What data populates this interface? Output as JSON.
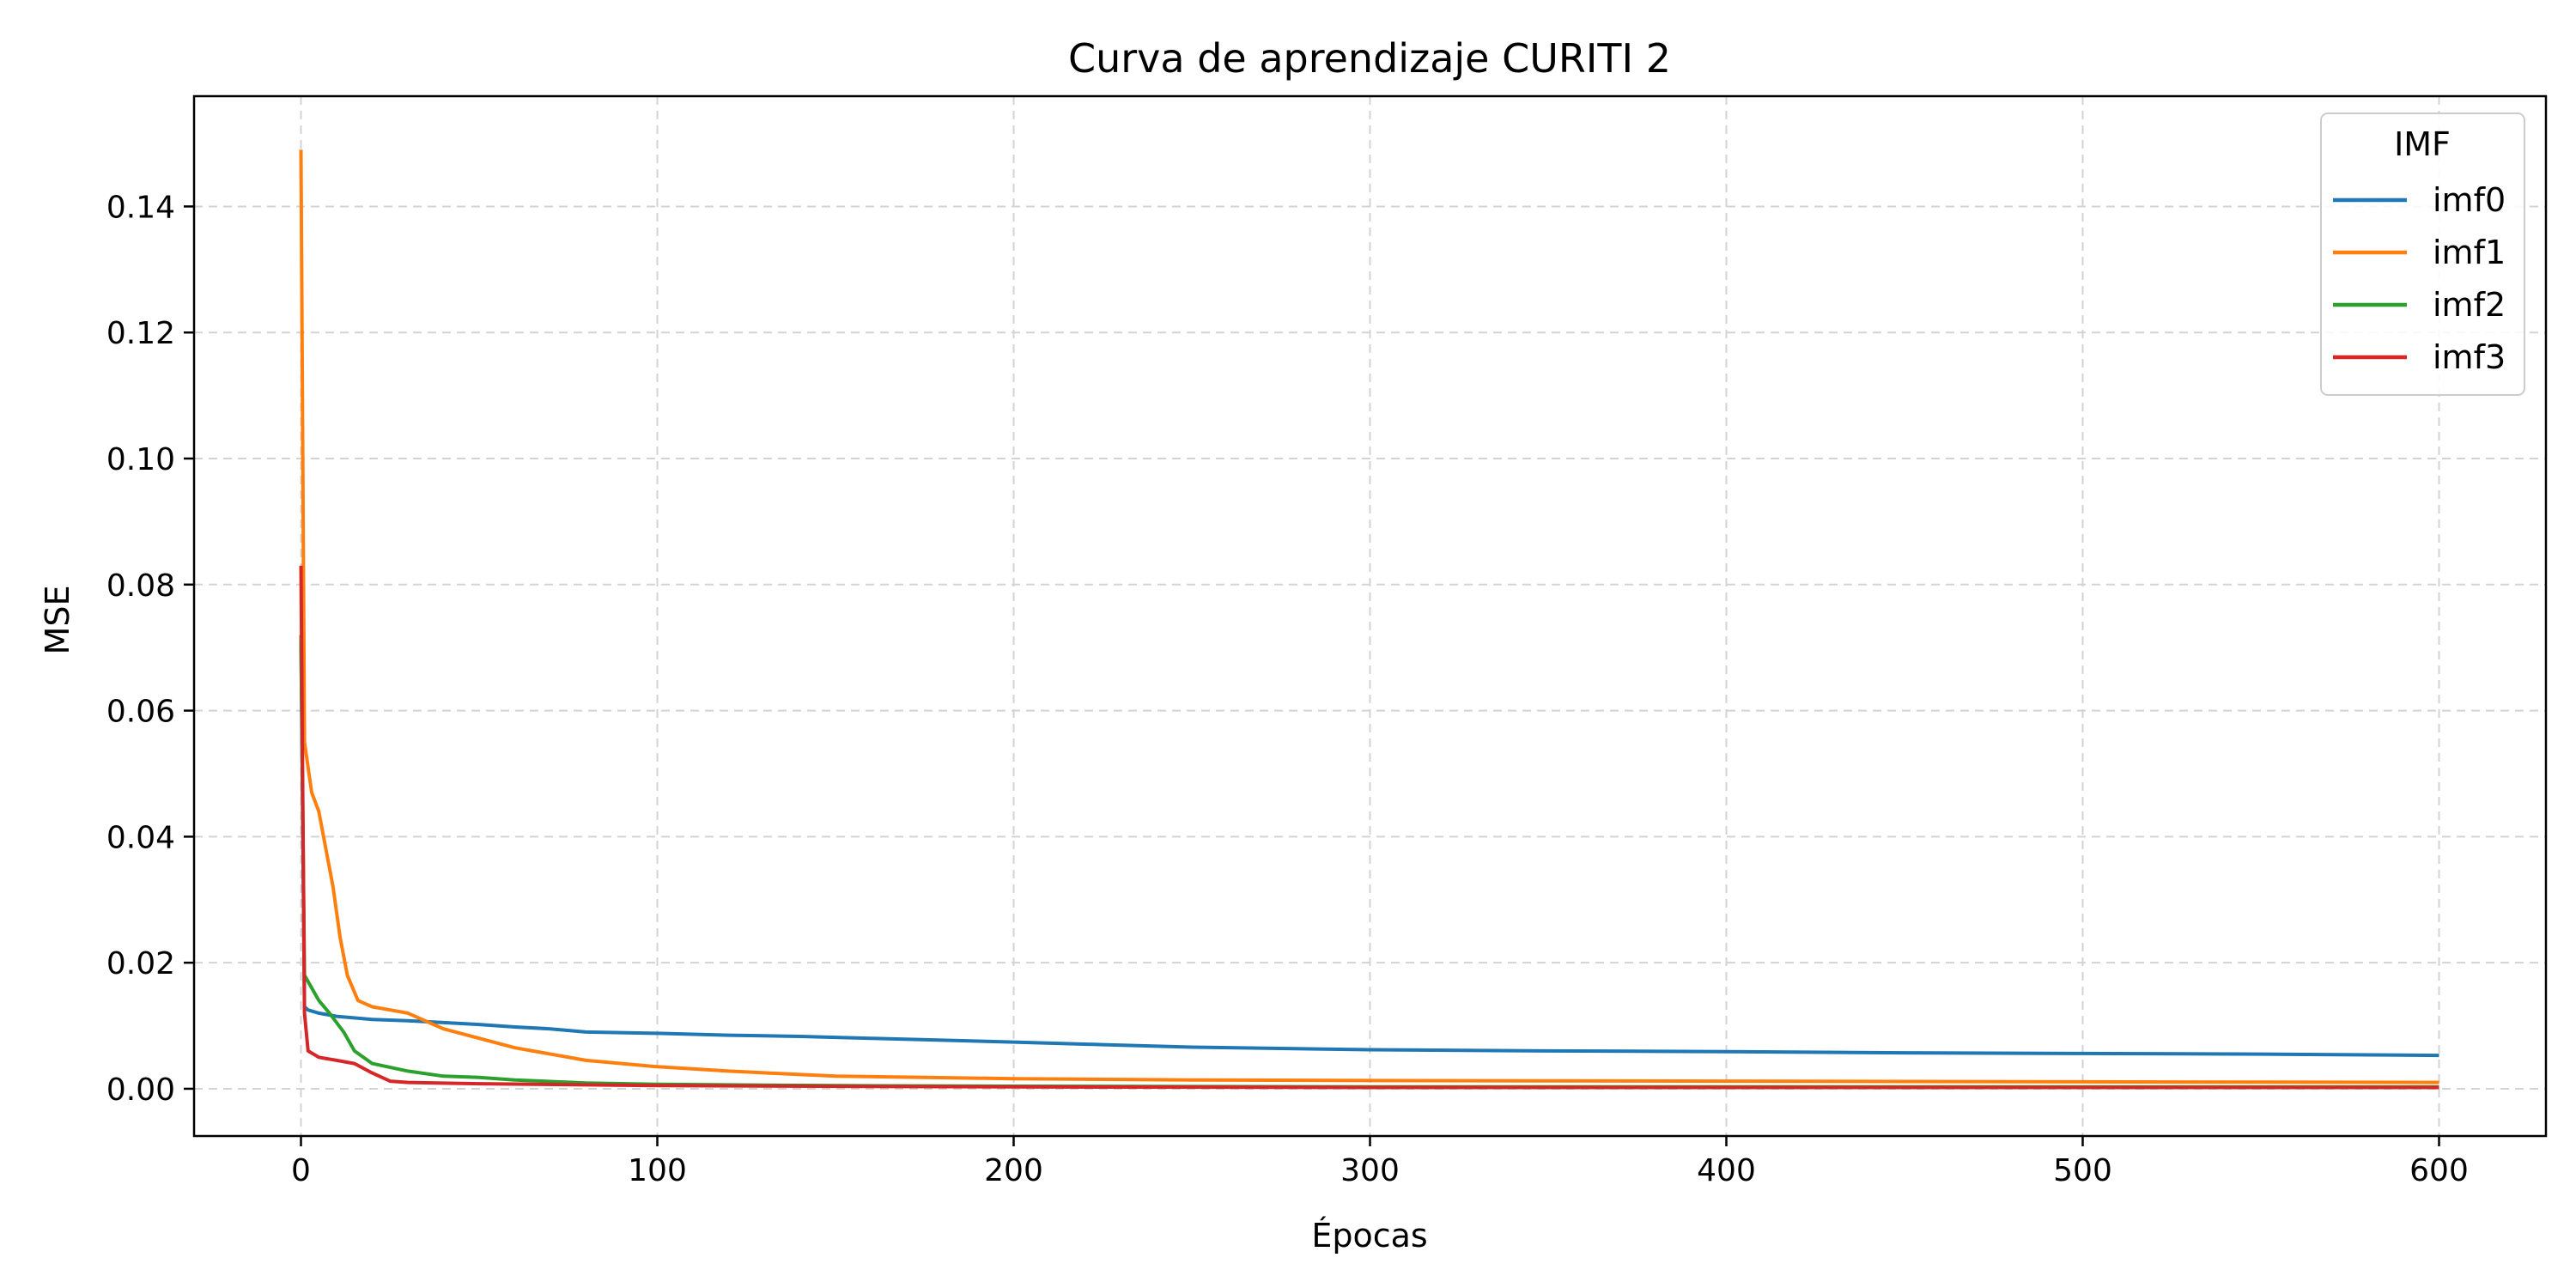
{
  "chart_data": {
    "type": "line",
    "title": "Curva de aprendizaje CURITI 2",
    "xlabel": "Épocas",
    "ylabel": "MSE",
    "xlim": [
      -30,
      630
    ],
    "ylim": [
      -0.0075,
      0.1575
    ],
    "xticks": [
      0,
      100,
      200,
      300,
      400,
      500,
      600
    ],
    "xtick_labels": [
      "0",
      "100",
      "200",
      "300",
      "400",
      "500",
      "600"
    ],
    "yticks": [
      0.0,
      0.02,
      0.04,
      0.06,
      0.08,
      0.1,
      0.12,
      0.14
    ],
    "ytick_labels": [
      "0.00",
      "0.02",
      "0.04",
      "0.06",
      "0.08",
      "0.10",
      "0.12",
      "0.14"
    ],
    "grid": true,
    "legend": {
      "title": "IMF",
      "position": "top-right"
    },
    "series": [
      {
        "name": "imf0",
        "color": "#1f77b4",
        "points": [
          [
            0,
            0.071
          ],
          [
            1,
            0.013
          ],
          [
            2,
            0.0125
          ],
          [
            5,
            0.012
          ],
          [
            10,
            0.0115
          ],
          [
            20,
            0.011
          ],
          [
            30,
            0.0108
          ],
          [
            40,
            0.0105
          ],
          [
            50,
            0.0102
          ],
          [
            60,
            0.0098
          ],
          [
            70,
            0.0095
          ],
          [
            80,
            0.009
          ],
          [
            100,
            0.0088
          ],
          [
            120,
            0.0085
          ],
          [
            140,
            0.0083
          ],
          [
            160,
            0.008
          ],
          [
            180,
            0.0077
          ],
          [
            200,
            0.0074
          ],
          [
            225,
            0.007
          ],
          [
            250,
            0.0066
          ],
          [
            300,
            0.0062
          ],
          [
            350,
            0.006
          ],
          [
            400,
            0.0059
          ],
          [
            450,
            0.0057
          ],
          [
            500,
            0.0056
          ],
          [
            550,
            0.0055
          ],
          [
            600,
            0.0053
          ]
        ]
      },
      {
        "name": "imf1",
        "color": "#ff7f0e",
        "points": [
          [
            0,
            0.149
          ],
          [
            1,
            0.055
          ],
          [
            3,
            0.047
          ],
          [
            5,
            0.044
          ],
          [
            7,
            0.038
          ],
          [
            9,
            0.032
          ],
          [
            11,
            0.024
          ],
          [
            13,
            0.018
          ],
          [
            16,
            0.014
          ],
          [
            20,
            0.013
          ],
          [
            25,
            0.0125
          ],
          [
            30,
            0.012
          ],
          [
            40,
            0.0095
          ],
          [
            50,
            0.008
          ],
          [
            60,
            0.0065
          ],
          [
            80,
            0.0045
          ],
          [
            100,
            0.0035
          ],
          [
            120,
            0.0028
          ],
          [
            150,
            0.002
          ],
          [
            200,
            0.0016
          ],
          [
            250,
            0.0014
          ],
          [
            300,
            0.0013
          ],
          [
            400,
            0.0012
          ],
          [
            500,
            0.0011
          ],
          [
            600,
            0.001
          ]
        ]
      },
      {
        "name": "imf2",
        "color": "#2ca02c",
        "points": [
          [
            0,
            0.072
          ],
          [
            1,
            0.018
          ],
          [
            3,
            0.016
          ],
          [
            5,
            0.014
          ],
          [
            8,
            0.012
          ],
          [
            12,
            0.009
          ],
          [
            15,
            0.006
          ],
          [
            20,
            0.004
          ],
          [
            30,
            0.0028
          ],
          [
            40,
            0.002
          ],
          [
            50,
            0.0018
          ],
          [
            60,
            0.0014
          ],
          [
            80,
            0.0009
          ],
          [
            100,
            0.0007
          ],
          [
            150,
            0.0005
          ],
          [
            200,
            0.0004
          ],
          [
            300,
            0.0003
          ],
          [
            400,
            0.0003
          ],
          [
            500,
            0.0003
          ],
          [
            600,
            0.0003
          ]
        ]
      },
      {
        "name": "imf3",
        "color": "#d62728",
        "points": [
          [
            0,
            0.083
          ],
          [
            1,
            0.012
          ],
          [
            2,
            0.006
          ],
          [
            5,
            0.005
          ],
          [
            10,
            0.0045
          ],
          [
            15,
            0.004
          ],
          [
            20,
            0.0025
          ],
          [
            25,
            0.0012
          ],
          [
            30,
            0.001
          ],
          [
            50,
            0.0008
          ],
          [
            100,
            0.0005
          ],
          [
            200,
            0.0003
          ],
          [
            300,
            0.0002
          ],
          [
            400,
            0.0002
          ],
          [
            500,
            0.0002
          ],
          [
            600,
            0.0002
          ]
        ]
      }
    ]
  }
}
